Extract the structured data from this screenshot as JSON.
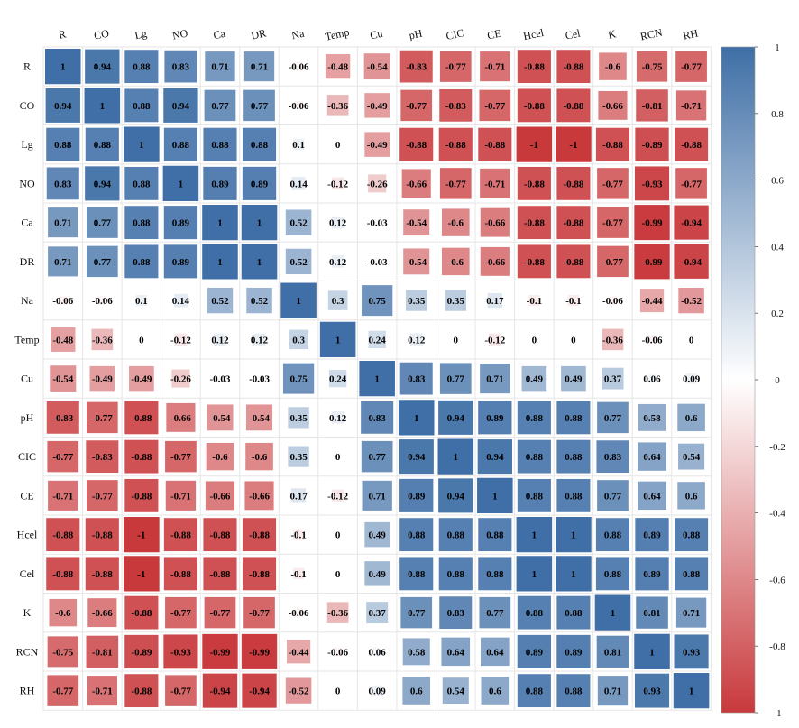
{
  "chart_data": {
    "type": "heatmap",
    "title": "",
    "variables": [
      "R",
      "CO",
      "Lg",
      "NO",
      "Ca",
      "DR",
      "Na",
      "Temp",
      "Cu",
      "pH",
      "CIC",
      "CE",
      "Hcel",
      "Cel",
      "K",
      "RCN",
      "RH"
    ],
    "matrix": [
      [
        1,
        0.94,
        0.88,
        0.83,
        0.71,
        0.71,
        -0.06,
        -0.48,
        -0.54,
        -0.83,
        -0.77,
        -0.71,
        -0.88,
        -0.88,
        -0.6,
        -0.75,
        -0.77
      ],
      [
        0.94,
        1,
        0.88,
        0.94,
        0.77,
        0.77,
        -0.06,
        -0.36,
        -0.49,
        -0.77,
        -0.83,
        -0.77,
        -0.88,
        -0.88,
        -0.66,
        -0.81,
        -0.71
      ],
      [
        0.88,
        0.88,
        1,
        0.88,
        0.88,
        0.88,
        0.1,
        0,
        -0.49,
        -0.88,
        -0.88,
        -0.88,
        -1,
        -1,
        -0.88,
        -0.89,
        -0.88
      ],
      [
        0.83,
        0.94,
        0.88,
        1,
        0.89,
        0.89,
        0.14,
        -0.12,
        -0.26,
        -0.66,
        -0.77,
        -0.71,
        -0.88,
        -0.88,
        -0.77,
        -0.93,
        -0.77
      ],
      [
        0.71,
        0.77,
        0.88,
        0.89,
        1,
        1,
        0.52,
        0.12,
        -0.03,
        -0.54,
        -0.6,
        -0.66,
        -0.88,
        -0.88,
        -0.77,
        -0.99,
        -0.94
      ],
      [
        0.71,
        0.77,
        0.88,
        0.89,
        1,
        1,
        0.52,
        0.12,
        -0.03,
        -0.54,
        -0.6,
        -0.66,
        -0.88,
        -0.88,
        -0.77,
        -0.99,
        -0.94
      ],
      [
        -0.06,
        -0.06,
        0.1,
        0.14,
        0.52,
        0.52,
        1,
        0.3,
        0.75,
        0.35,
        0.35,
        0.17,
        -0.1,
        -0.1,
        -0.06,
        -0.44,
        -0.52
      ],
      [
        -0.48,
        -0.36,
        0,
        -0.12,
        0.12,
        0.12,
        0.3,
        1,
        0.24,
        0.12,
        0,
        -0.12,
        0,
        0,
        -0.36,
        -0.06,
        0
      ],
      [
        -0.54,
        -0.49,
        -0.49,
        -0.26,
        -0.03,
        -0.03,
        0.75,
        0.24,
        1,
        0.83,
        0.77,
        0.71,
        0.49,
        0.49,
        0.37,
        0.06,
        0.09
      ],
      [
        -0.83,
        -0.77,
        -0.88,
        -0.66,
        -0.54,
        -0.54,
        0.35,
        0.12,
        0.83,
        1,
        0.94,
        0.89,
        0.88,
        0.88,
        0.77,
        0.58,
        0.6
      ],
      [
        -0.77,
        -0.83,
        -0.88,
        -0.77,
        -0.6,
        -0.6,
        0.35,
        0,
        0.77,
        0.94,
        1,
        0.94,
        0.88,
        0.88,
        0.83,
        0.64,
        0.54
      ],
      [
        -0.71,
        -0.77,
        -0.88,
        -0.71,
        -0.66,
        -0.66,
        0.17,
        -0.12,
        0.71,
        0.89,
        0.94,
        1,
        0.88,
        0.88,
        0.77,
        0.64,
        0.6
      ],
      [
        -0.88,
        -0.88,
        -1,
        -0.88,
        -0.88,
        -0.88,
        -0.1,
        0,
        0.49,
        0.88,
        0.88,
        0.88,
        1,
        1,
        0.88,
        0.89,
        0.88
      ],
      [
        -0.88,
        -0.88,
        -1,
        -0.88,
        -0.88,
        -0.88,
        -0.1,
        0,
        0.49,
        0.88,
        0.88,
        0.88,
        1,
        1,
        0.88,
        0.89,
        0.88
      ],
      [
        -0.6,
        -0.66,
        -0.88,
        -0.77,
        -0.77,
        -0.77,
        -0.06,
        -0.36,
        0.37,
        0.77,
        0.83,
        0.77,
        0.88,
        0.88,
        1,
        0.81,
        0.71
      ],
      [
        -0.75,
        -0.81,
        -0.89,
        -0.93,
        -0.99,
        -0.99,
        -0.44,
        -0.06,
        0.06,
        0.58,
        0.64,
        0.64,
        0.89,
        0.89,
        0.81,
        1,
        0.93
      ],
      [
        -0.77,
        -0.71,
        -0.88,
        -0.77,
        -0.94,
        -0.94,
        -0.52,
        0,
        0.09,
        0.6,
        0.54,
        0.6,
        0.88,
        0.88,
        0.71,
        0.93,
        1
      ]
    ],
    "colorbar": {
      "range": [
        -1,
        1
      ],
      "ticks": [
        1,
        0.8,
        0.6,
        0.4,
        0.2,
        0,
        -0.2,
        -0.4,
        -0.6,
        -0.8,
        -1
      ],
      "tick_labels": [
        "1",
        "0.8",
        "0.6",
        "0.4",
        "0.2",
        "0",
        "-0.2",
        "-0.4",
        "-0.6",
        "-0.8",
        "-1"
      ],
      "placement": "right"
    },
    "colors": {
      "positive": "#3f6fa6",
      "neutral": "#ffffff",
      "negative": "#c8393c",
      "grid": "#e6e6e6"
    }
  }
}
